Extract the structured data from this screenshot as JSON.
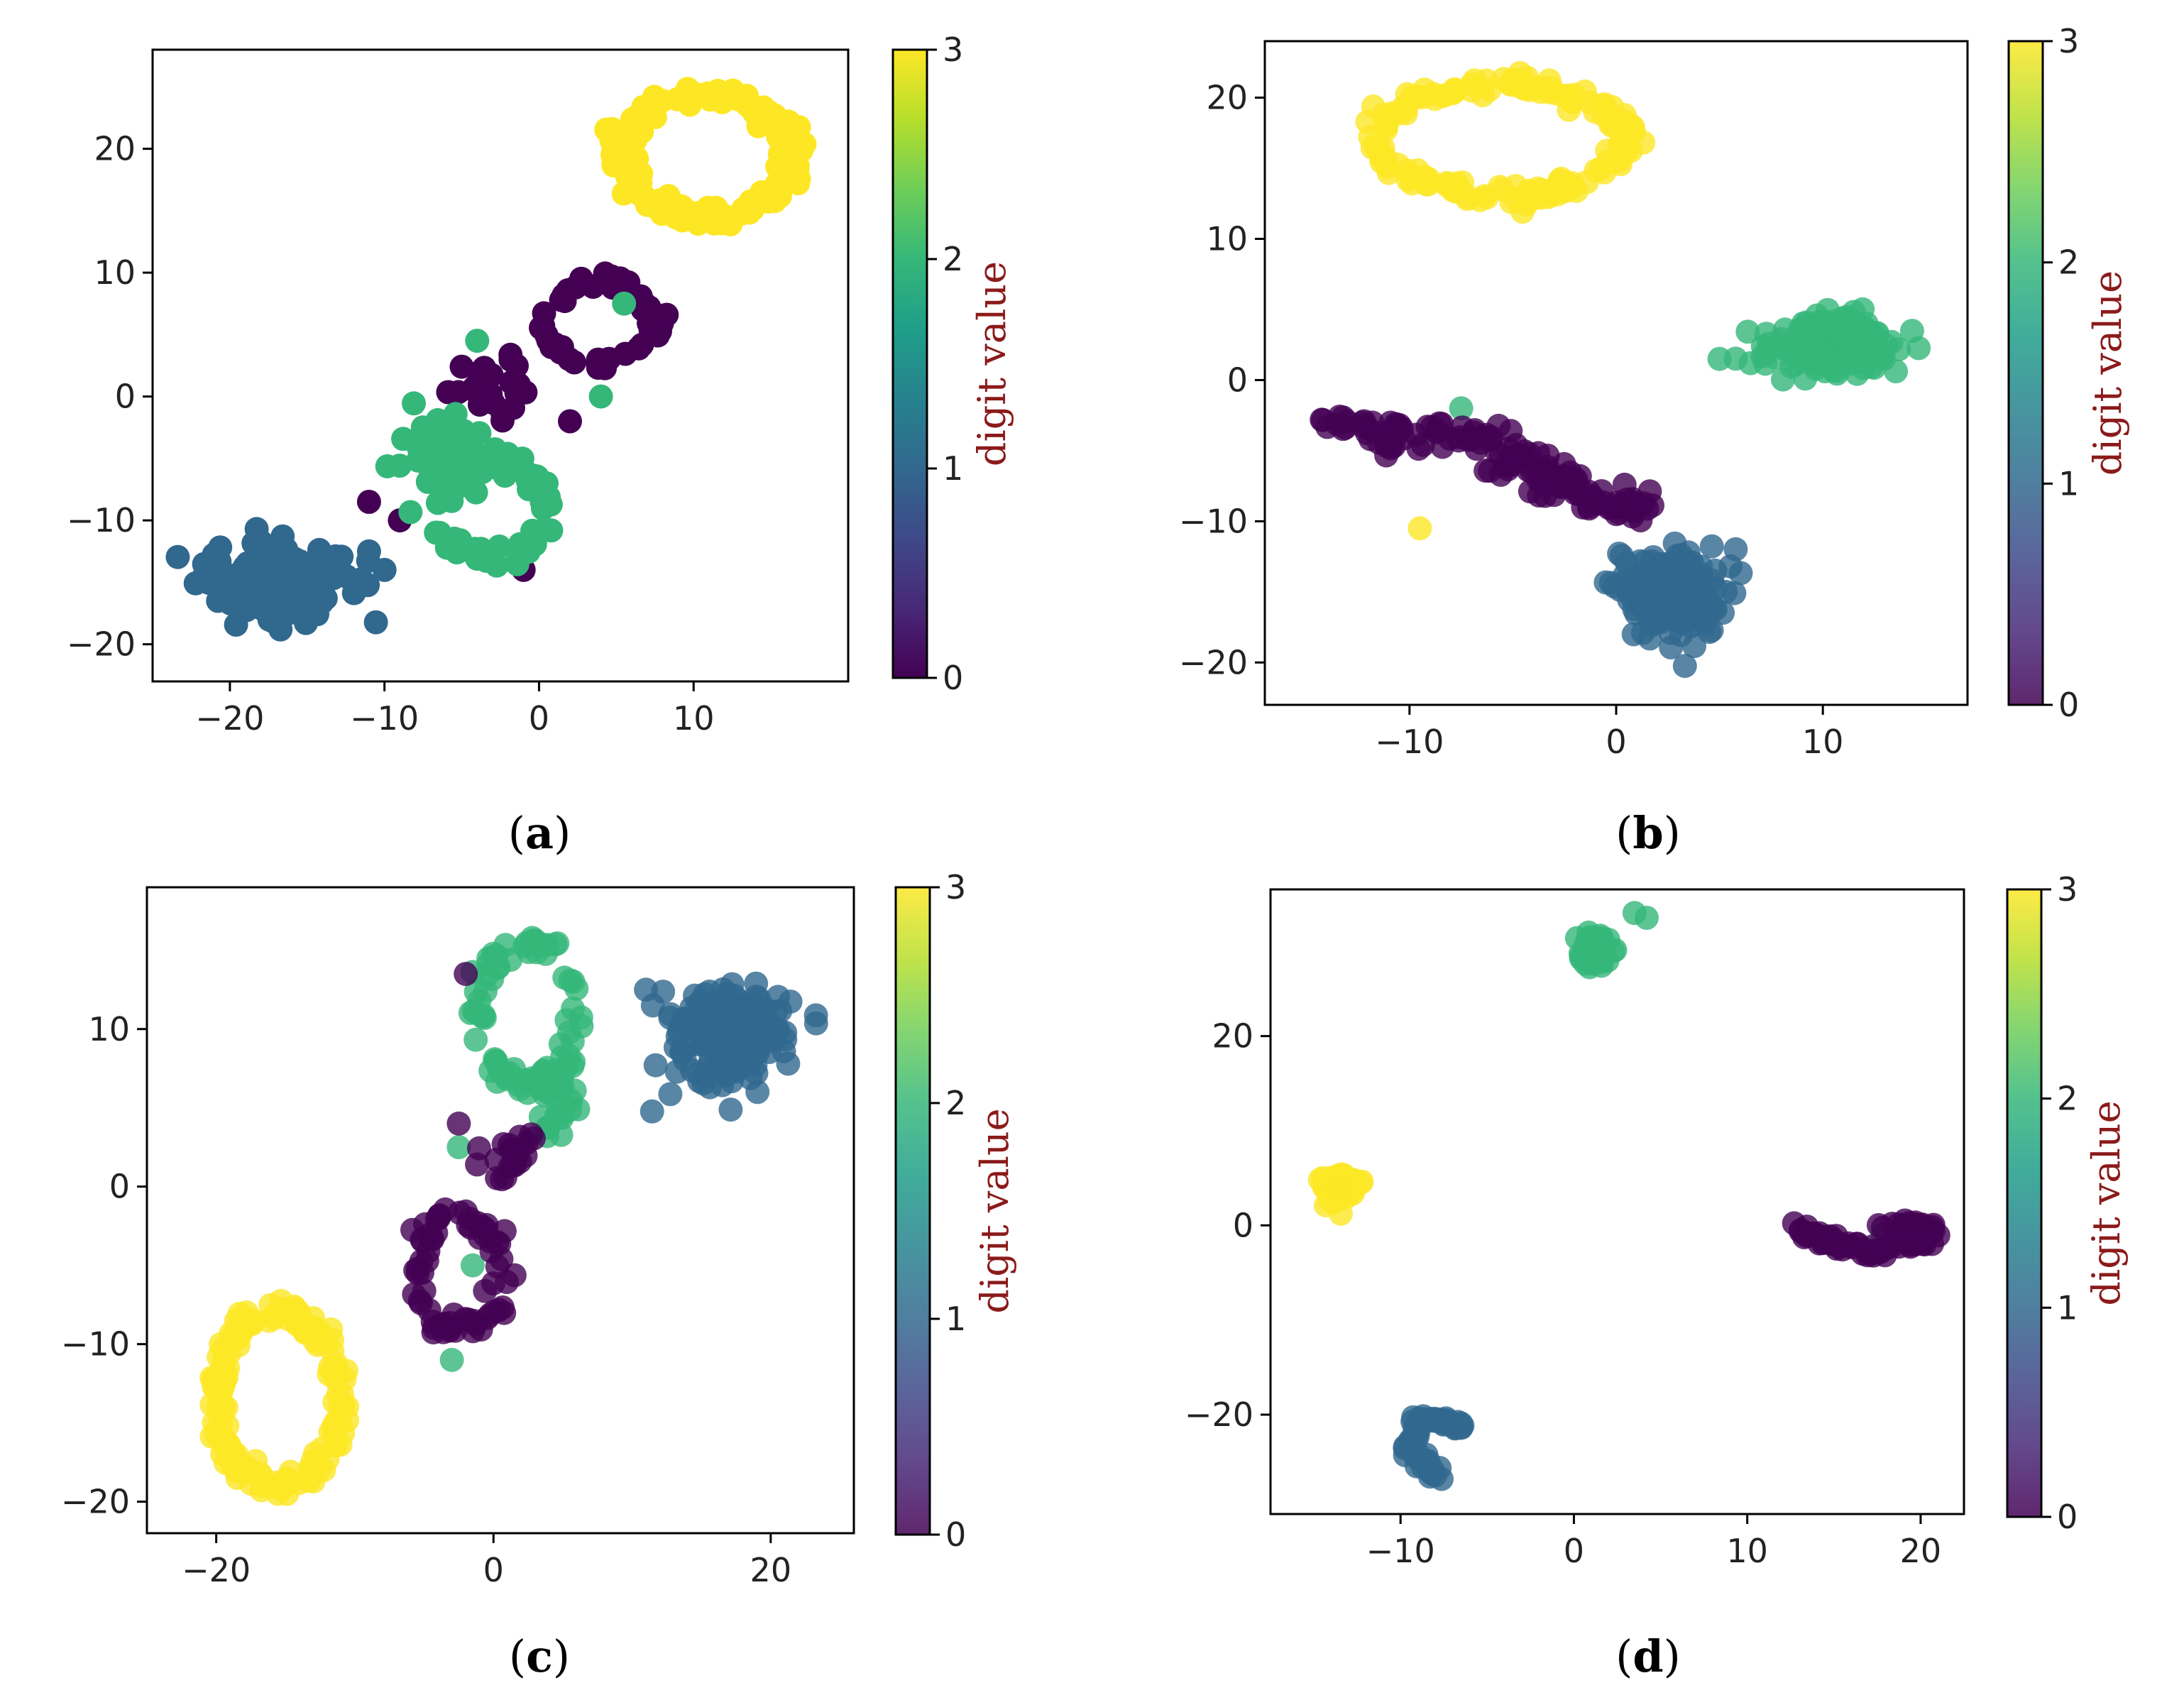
{
  "colors": {
    "digit_0": "#440154",
    "digit_1": "#31688e",
    "digit_2": "#35b779",
    "digit_3": "#fde725",
    "colorbar_label": "#8b1a1a",
    "axis": "#000000",
    "text": "#222222"
  },
  "chart_data": [
    {
      "panel": "a",
      "type": "scatter",
      "caption_letter": "a",
      "xlim": [
        -25,
        20
      ],
      "ylim": [
        -23,
        28
      ],
      "xticks": [
        -20,
        -10,
        0,
        10
      ],
      "yticks": [
        -20,
        -10,
        0,
        10,
        20
      ],
      "xtick_labels": [
        "−20",
        "−10",
        "0",
        "10"
      ],
      "ytick_labels": [
        "−20",
        "−10",
        "0",
        "10",
        "20"
      ],
      "colorbar": {
        "label": "digit value",
        "min": 0,
        "max": 3,
        "ticks": [
          "0",
          "1",
          "2",
          "3"
        ]
      },
      "marker_alpha": 1.0,
      "clusters": [
        {
          "digit": 3,
          "shape": "ring",
          "cx": 11,
          "cy": 19.5,
          "rx": 5.5,
          "ry": 5,
          "jitter": 0.9,
          "n": 170
        },
        {
          "digit": 0,
          "shape": "ring",
          "cx": 4,
          "cy": 6,
          "rx": 3.5,
          "ry": 3.5,
          "jitter": 0.8,
          "n": 55
        },
        {
          "digit": 0,
          "shape": "blob",
          "cx": -3,
          "cy": 1,
          "sx": 3,
          "sy": 2,
          "n": 25
        },
        {
          "digit": 0,
          "shape": "points",
          "pts": [
            [
              -11,
              -8.5
            ],
            [
              -9,
              -10
            ],
            [
              -1,
              -14
            ],
            [
              2,
              -2
            ]
          ]
        },
        {
          "digit": 2,
          "shape": "blob",
          "cx": -6,
          "cy": -5,
          "sx": 2.5,
          "sy": 3.5,
          "n": 55
        },
        {
          "digit": 2,
          "shape": "ring",
          "cx": -3,
          "cy": -9,
          "rx": 3.5,
          "ry": 4,
          "jitter": 0.8,
          "n": 55
        },
        {
          "digit": 2,
          "shape": "points",
          "pts": [
            [
              5.5,
              7.5
            ],
            [
              4,
              0
            ],
            [
              -4,
              4.5
            ]
          ]
        },
        {
          "digit": 1,
          "shape": "blob",
          "cx": -17,
          "cy": -15,
          "sx": 4,
          "sy": 2.8,
          "n": 200
        },
        {
          "digit": 1,
          "shape": "points",
          "pts": [
            [
              -10,
              -14
            ],
            [
              -11,
              -12.5
            ]
          ]
        }
      ]
    },
    {
      "panel": "b",
      "type": "scatter",
      "caption_letter": "b",
      "xlim": [
        -17,
        17
      ],
      "ylim": [
        -23,
        24
      ],
      "xticks": [
        -10,
        0,
        10
      ],
      "yticks": [
        -20,
        -10,
        0,
        10,
        20
      ],
      "xtick_labels": [
        "−10",
        "0",
        "10"
      ],
      "ytick_labels": [
        "−20",
        "−10",
        "0",
        "10",
        "20"
      ],
      "colorbar": {
        "label": "digit value",
        "min": 0,
        "max": 3,
        "ticks": [
          "0",
          "1",
          "2",
          "3"
        ]
      },
      "marker_alpha": 0.8,
      "clusters": [
        {
          "digit": 3,
          "shape": "ring",
          "cx": -5.5,
          "cy": 17,
          "rx": 6,
          "ry": 3.8,
          "jitter": 0.8,
          "n": 160
        },
        {
          "digit": 3,
          "shape": "points",
          "pts": [
            [
              -9.5,
              -10.5
            ]
          ]
        },
        {
          "digit": 2,
          "shape": "blob",
          "cx": 10.5,
          "cy": 2.5,
          "sx": 2.8,
          "sy": 1.8,
          "n": 200
        },
        {
          "digit": 2,
          "shape": "points",
          "pts": [
            [
              5,
              1.5
            ],
            [
              6.5,
              1.2
            ],
            [
              -7.5,
              -2
            ]
          ]
        },
        {
          "digit": 0,
          "shape": "arc",
          "pts": [
            [
              -15,
              -3
            ],
            [
              -11,
              -3.5
            ],
            [
              -8,
              -4
            ],
            [
              -5,
              -5.5
            ],
            [
              -3,
              -7
            ],
            [
              -1,
              -8.5
            ],
            [
              1,
              -9
            ]
          ],
          "spread": 1.3,
          "n": 140
        },
        {
          "digit": 1,
          "shape": "blob",
          "cx": 2.5,
          "cy": -15,
          "sx": 2.2,
          "sy": 2.6,
          "n": 200
        }
      ]
    },
    {
      "panel": "c",
      "type": "scatter",
      "caption_letter": "c",
      "xlim": [
        -25,
        26
      ],
      "ylim": [
        -22,
        19
      ],
      "xticks": [
        -20,
        0,
        20
      ],
      "yticks": [
        -20,
        -10,
        0,
        10
      ],
      "xtick_labels": [
        "−20",
        "0",
        "20"
      ],
      "ytick_labels": [
        "−20",
        "−10",
        "0",
        "10"
      ],
      "colorbar": {
        "label": "digit value",
        "min": 0,
        "max": 3,
        "ticks": [
          "0",
          "1",
          "2",
          "3"
        ]
      },
      "marker_alpha": 0.8,
      "clusters": [
        {
          "digit": 3,
          "shape": "ring",
          "cx": -15.5,
          "cy": -13.5,
          "rx": 4.5,
          "ry": 5.5,
          "jitter": 0.8,
          "n": 170
        },
        {
          "digit": 2,
          "shape": "ring",
          "cx": 2.5,
          "cy": 11,
          "rx": 3.5,
          "ry": 4.5,
          "jitter": 0.8,
          "n": 75
        },
        {
          "digit": 2,
          "shape": "blob",
          "cx": 4.5,
          "cy": 6,
          "sx": 1.6,
          "sy": 2.5,
          "n": 40
        },
        {
          "digit": 2,
          "shape": "points",
          "pts": [
            [
              -1.5,
              -5
            ],
            [
              -3,
              -11
            ],
            [
              -2.5,
              2.5
            ]
          ]
        },
        {
          "digit": 0,
          "shape": "ring",
          "cx": -2.5,
          "cy": -5.5,
          "rx": 3,
          "ry": 3.5,
          "jitter": 0.8,
          "n": 70
        },
        {
          "digit": 0,
          "shape": "blob",
          "cx": 1,
          "cy": 2,
          "sx": 2.5,
          "sy": 1.5,
          "n": 20
        },
        {
          "digit": 0,
          "shape": "points",
          "pts": [
            [
              -2,
              13.5
            ],
            [
              -2.5,
              4
            ]
          ]
        },
        {
          "digit": 1,
          "shape": "blob",
          "cx": 17,
          "cy": 9.5,
          "sx": 3.5,
          "sy": 2.5,
          "n": 220
        },
        {
          "digit": 1,
          "shape": "points",
          "pts": [
            [
              11,
              12.5
            ],
            [
              11.5,
              11.5
            ]
          ]
        }
      ]
    },
    {
      "panel": "d",
      "type": "scatter",
      "caption_letter": "d",
      "xlim": [
        -17.5,
        22.5
      ],
      "ylim": [
        -30.5,
        35.5
      ],
      "xticks": [
        -10,
        0,
        10,
        20
      ],
      "yticks": [
        -20,
        0,
        20
      ],
      "xtick_labels": [
        "−10",
        "0",
        "10",
        "20"
      ],
      "ytick_labels": [
        "−20",
        "0",
        "20"
      ],
      "colorbar": {
        "label": "digit value",
        "min": 0,
        "max": 3,
        "ticks": [
          "0",
          "1",
          "2",
          "3"
        ]
      },
      "marker_alpha": 0.8,
      "clusters": [
        {
          "digit": 2,
          "shape": "blob",
          "cx": 1,
          "cy": 29,
          "sx": 0.9,
          "sy": 1.7,
          "n": 60
        },
        {
          "digit": 2,
          "shape": "points",
          "pts": [
            [
              3.5,
              33
            ],
            [
              4.2,
              32.5
            ],
            [
              17.8,
              -1
            ]
          ]
        },
        {
          "digit": 3,
          "shape": "blob",
          "cx": -13.5,
          "cy": 4,
          "sx": 0.9,
          "sy": 1.5,
          "n": 70
        },
        {
          "digit": 0,
          "shape": "arc",
          "pts": [
            [
              13,
              0
            ],
            [
              15,
              -2
            ],
            [
              17.5,
              -3
            ],
            [
              19.5,
              -2
            ],
            [
              20.5,
              0
            ],
            [
              18,
              0
            ]
          ],
          "spread": 0.7,
          "n": 90
        },
        {
          "digit": 1,
          "shape": "arc",
          "pts": [
            [
              -8,
              -26.5
            ],
            [
              -9.5,
              -23.5
            ],
            [
              -9,
              -20.5
            ],
            [
              -7.5,
              -20.5
            ],
            [
              -6.5,
              -21.5
            ]
          ],
          "spread": 0.5,
          "n": 70
        }
      ]
    }
  ]
}
